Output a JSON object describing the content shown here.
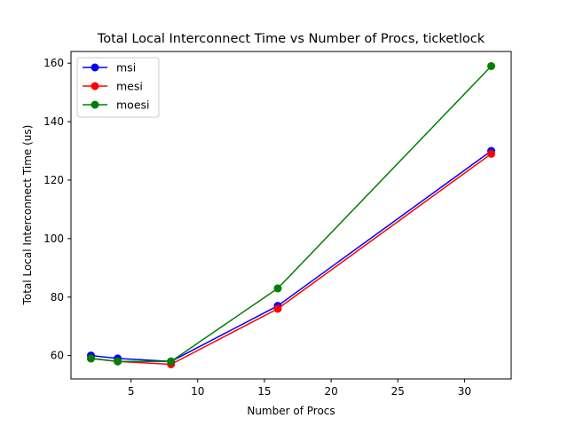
{
  "chart_data": {
    "type": "line",
    "title": "Total Local Interconnect Time vs Number of Procs, ticketlock",
    "xlabel": "Number of Procs",
    "ylabel": "Total Local Interconnect Time (us)",
    "xlim": [
      0.5,
      33.5
    ],
    "ylim": [
      52,
      164
    ],
    "xticks": [
      5,
      10,
      15,
      20,
      25,
      30
    ],
    "yticks": [
      60,
      80,
      100,
      120,
      140,
      160
    ],
    "grid": false,
    "legend_position": "upper-left",
    "x": [
      2,
      4,
      8,
      16,
      32
    ],
    "series": [
      {
        "name": "msi",
        "color": "#0000ff",
        "values": [
          60,
          59,
          58,
          77,
          130
        ]
      },
      {
        "name": "mesi",
        "color": "#ff0000",
        "values": [
          59,
          58,
          57,
          76,
          129
        ]
      },
      {
        "name": "moesi",
        "color": "#008000",
        "values": [
          59,
          58,
          58,
          83,
          159
        ]
      }
    ]
  }
}
